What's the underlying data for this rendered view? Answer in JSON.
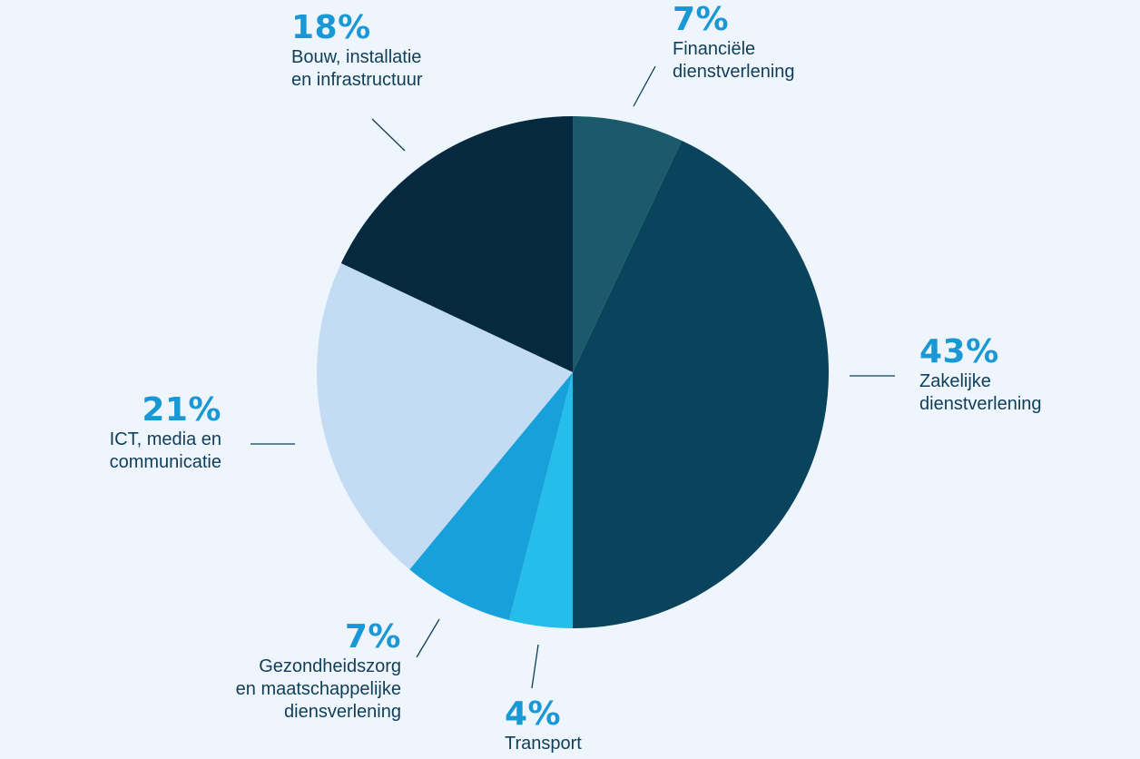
{
  "chart_data": {
    "type": "pie",
    "start_angle_deg": 0,
    "direction": "clockwise",
    "slices": [
      {
        "label": "Financiële\ndienstverlening",
        "percent_label": "7%",
        "value": 7,
        "color": "#1a5a6b"
      },
      {
        "label": "Zakelijke\ndienstverlening",
        "percent_label": "43%",
        "value": 43,
        "color": "#0a435c"
      },
      {
        "label": "Transport",
        "percent_label": "4%",
        "value": 4,
        "color": "#25bde9"
      },
      {
        "label": "Gezondheidszorg\nen maatschappelijke\ndiensverlening",
        "percent_label": "7%",
        "value": 7,
        "color": "#18a0da"
      },
      {
        "label": "ICT, media en\ncommunicatie",
        "percent_label": "21%",
        "value": 21,
        "color": "#c3dcf3"
      },
      {
        "label": "Bouw, installatie\nen infrastructuur",
        "percent_label": "18%",
        "value": 18,
        "color": "#05293f"
      }
    ]
  }
}
